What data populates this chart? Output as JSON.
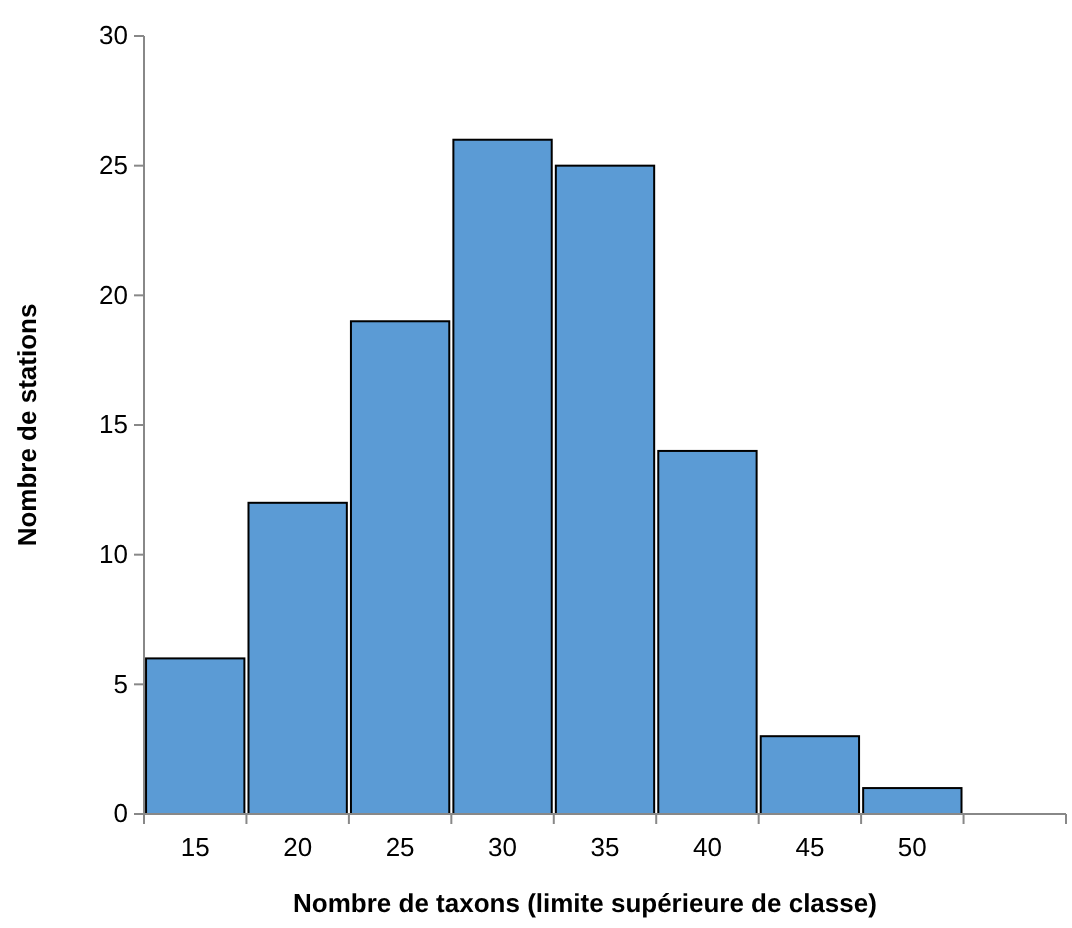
{
  "chart_data": {
    "type": "bar",
    "xlabel": "Nombre de taxons (limite supérieure de classe)",
    "ylabel": "Nombre de stations",
    "categories": [
      "15",
      "20",
      "25",
      "30",
      "35",
      "40",
      "45",
      "50",
      null
    ],
    "values": [
      6,
      12,
      19,
      26,
      25,
      14,
      3,
      1,
      null
    ],
    "color": "#5b9bd5",
    "ylim": [
      0,
      30
    ],
    "yticks": [
      0,
      5,
      10,
      15,
      20,
      25,
      30
    ],
    "grid": false
  }
}
